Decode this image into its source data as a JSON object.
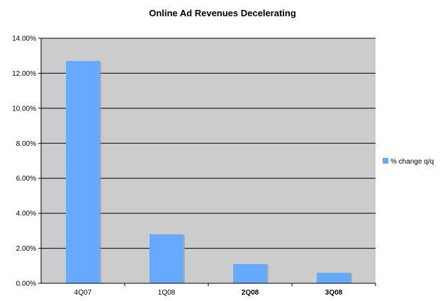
{
  "chart_data": {
    "type": "bar",
    "title": "Online Ad Revenues Decelerating",
    "xlabel": "",
    "ylabel": "",
    "categories": [
      "4Q07",
      "1Q08",
      "2Q08",
      "3Q08"
    ],
    "category_bold": [
      false,
      false,
      true,
      true
    ],
    "series": [
      {
        "name": "% change q/q",
        "values": [
          12.7,
          2.8,
          1.1,
          0.6
        ],
        "color": "#66aaff"
      }
    ],
    "ylim": [
      0,
      14
    ],
    "ytick_step": 2,
    "ytick_labels": [
      "0.00%",
      "2.00%",
      "4.00%",
      "6.00%",
      "8.00%",
      "10.00%",
      "12.00%",
      "14.00%"
    ],
    "grid": true,
    "legend_position": "right",
    "plot_background": "#cccccc"
  }
}
